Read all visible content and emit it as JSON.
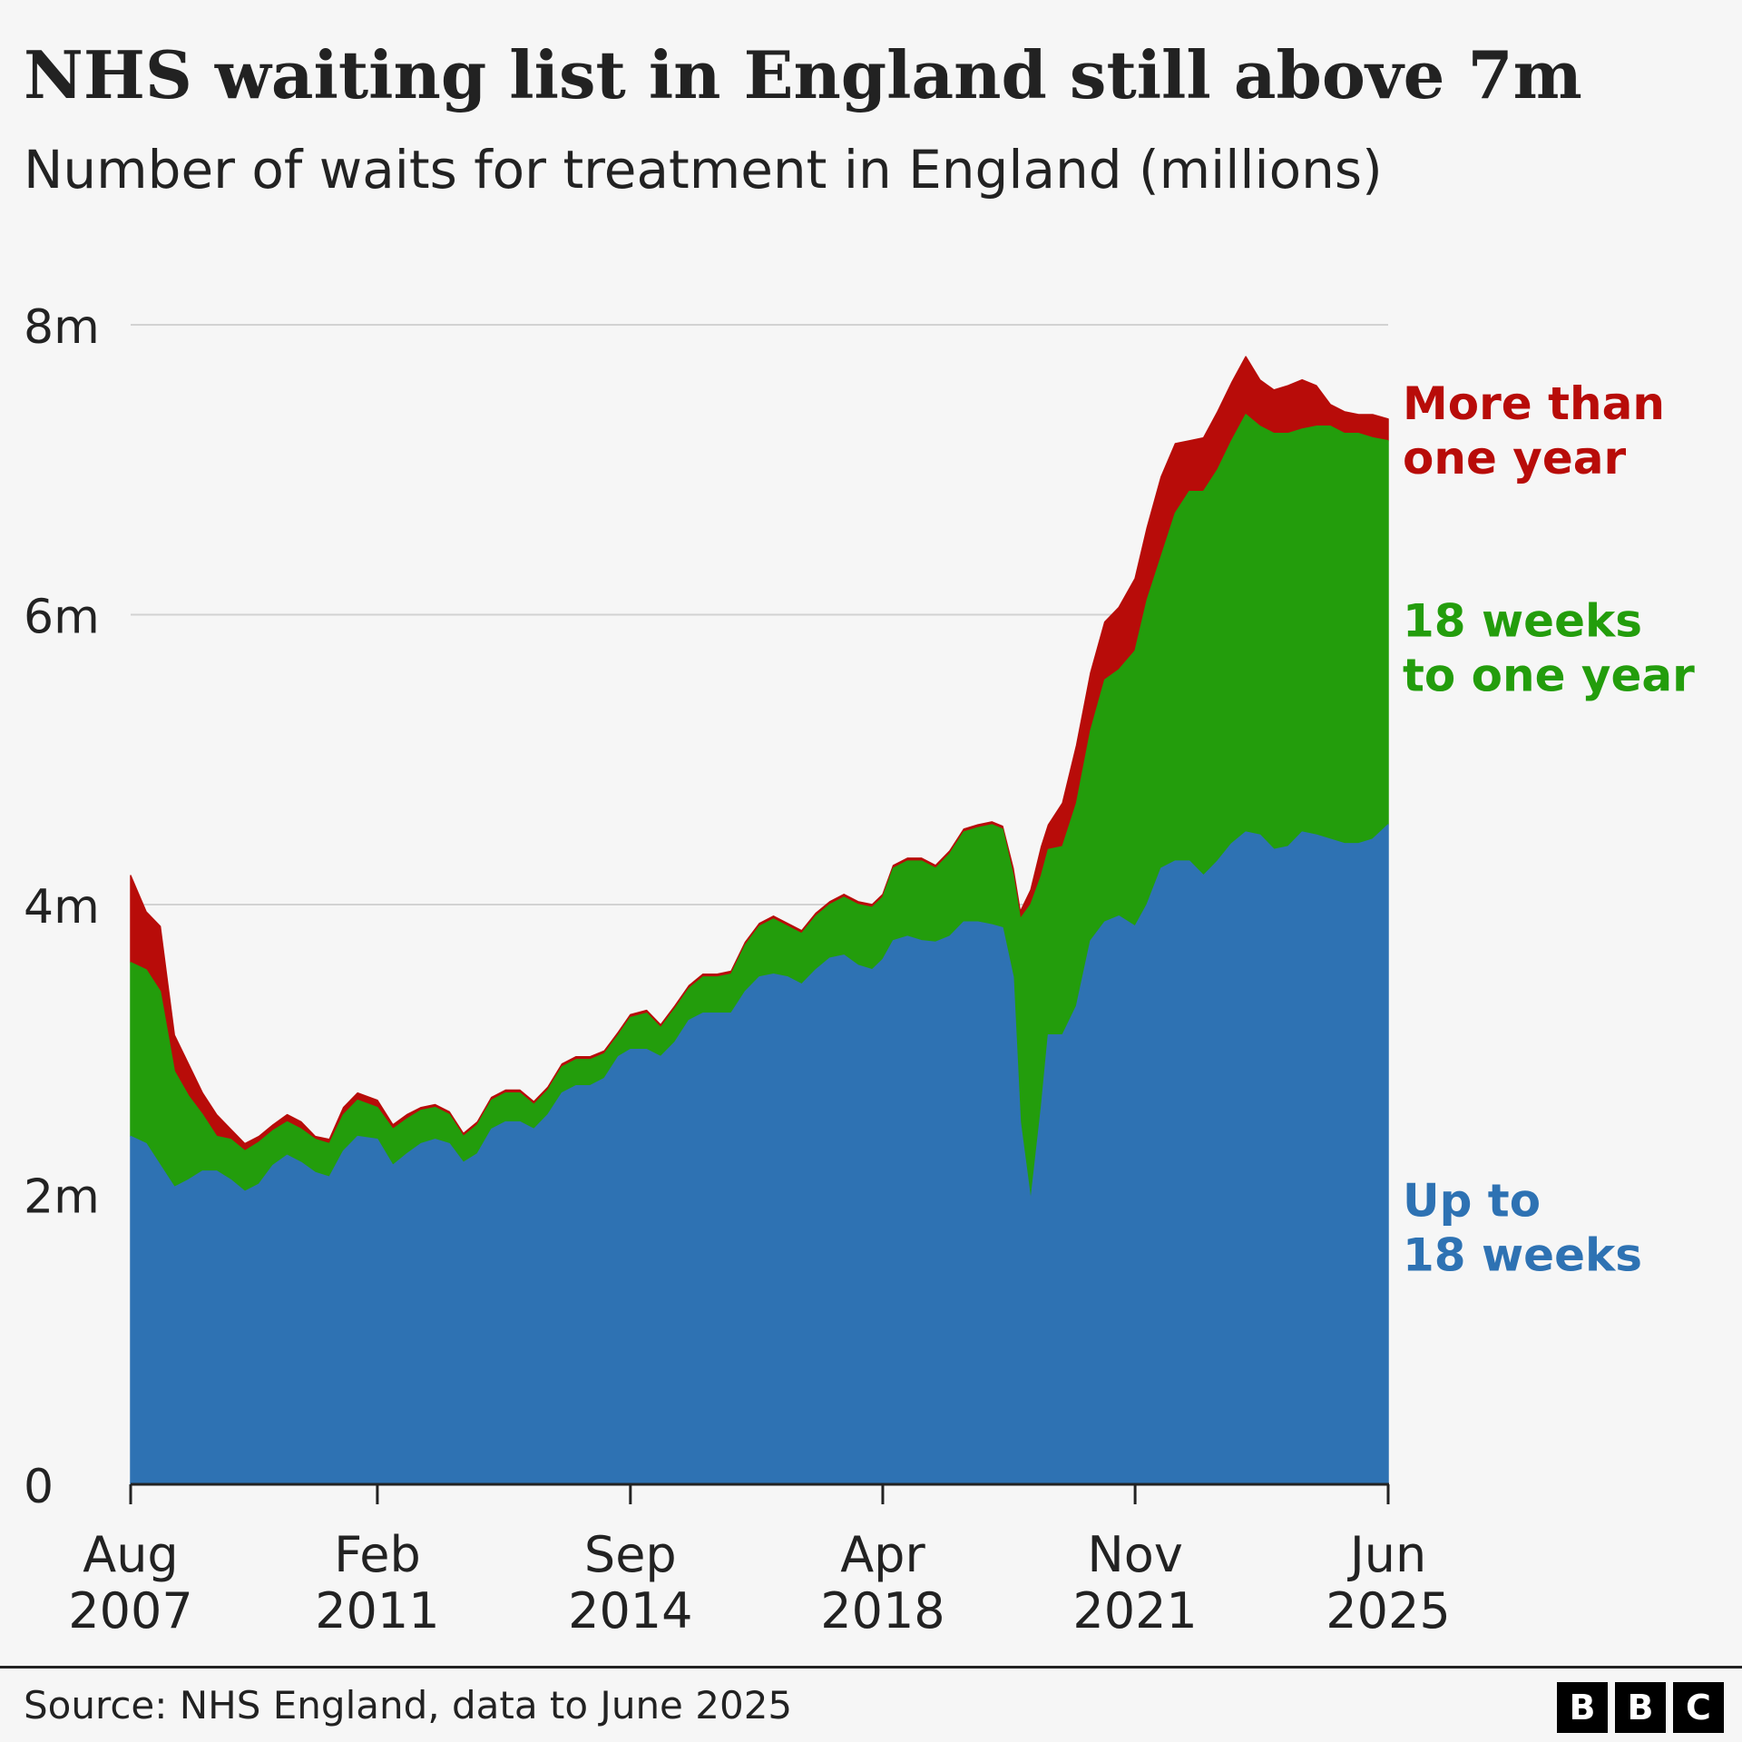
{
  "title": "NHS waiting list in England still above 7m",
  "subtitle": "Number of waits for treatment in England (millions)",
  "source": "Source: NHS England, data to June 2025",
  "logo": [
    "B",
    "B",
    "C"
  ],
  "colors": {
    "up_to_18_weeks": "#2e72b3",
    "18_weeks_to_one_year": "#239d0c",
    "more_than_one_year": "#b80c09",
    "grid": "#d2d2d2",
    "text": "#222222"
  },
  "chart_data": {
    "type": "area",
    "stacked": true,
    "title": "NHS waiting list in England still above 7m",
    "subtitle": "Number of waits for treatment in England (millions)",
    "xlabel": "",
    "ylabel": "",
    "ylim": [
      0,
      8
    ],
    "xlim": [
      "Aug 2007",
      "Jun 2025"
    ],
    "grid": true,
    "y_ticks": [
      {
        "value": 0,
        "label": "0"
      },
      {
        "value": 2,
        "label": "2m"
      },
      {
        "value": 4,
        "label": "4m"
      },
      {
        "value": 6,
        "label": "6m"
      },
      {
        "value": 8,
        "label": "8m"
      }
    ],
    "x_ticks": [
      {
        "label": [
          "Aug",
          "2007"
        ],
        "t": 2007.58
      },
      {
        "label": [
          "Feb",
          "2011"
        ],
        "t": 2011.08
      },
      {
        "label": [
          "Sep",
          "2014"
        ],
        "t": 2014.67
      },
      {
        "label": [
          "Apr",
          "2018"
        ],
        "t": 2018.25
      },
      {
        "label": [
          "Nov",
          "2021"
        ],
        "t": 2021.83
      },
      {
        "label": [
          "Jun",
          "2025"
        ],
        "t": 2025.42
      }
    ],
    "series": [
      {
        "name": "Up to 18 weeks",
        "label": [
          "Up to",
          "18 weeks"
        ],
        "label_y": 1.8,
        "points": [
          [
            2007.58,
            2.4
          ],
          [
            2007.8,
            2.35
          ],
          [
            2008.0,
            2.2
          ],
          [
            2008.2,
            2.05
          ],
          [
            2008.4,
            2.1
          ],
          [
            2008.6,
            2.16
          ],
          [
            2008.8,
            2.16
          ],
          [
            2009.0,
            2.1
          ],
          [
            2009.2,
            2.02
          ],
          [
            2009.4,
            2.07
          ],
          [
            2009.6,
            2.2
          ],
          [
            2009.8,
            2.27
          ],
          [
            2010.0,
            2.22
          ],
          [
            2010.2,
            2.15
          ],
          [
            2010.4,
            2.12
          ],
          [
            2010.6,
            2.3
          ],
          [
            2010.8,
            2.4
          ],
          [
            2011.08,
            2.38
          ],
          [
            2011.3,
            2.2
          ],
          [
            2011.5,
            2.28
          ],
          [
            2011.7,
            2.35
          ],
          [
            2011.9,
            2.38
          ],
          [
            2012.1,
            2.35
          ],
          [
            2012.3,
            2.22
          ],
          [
            2012.5,
            2.28
          ],
          [
            2012.7,
            2.45
          ],
          [
            2012.9,
            2.5
          ],
          [
            2013.1,
            2.5
          ],
          [
            2013.3,
            2.45
          ],
          [
            2013.5,
            2.55
          ],
          [
            2013.7,
            2.7
          ],
          [
            2013.9,
            2.75
          ],
          [
            2014.1,
            2.75
          ],
          [
            2014.3,
            2.8
          ],
          [
            2014.5,
            2.95
          ],
          [
            2014.67,
            3.0
          ],
          [
            2014.9,
            3.0
          ],
          [
            2015.1,
            2.95
          ],
          [
            2015.3,
            3.05
          ],
          [
            2015.5,
            3.2
          ],
          [
            2015.7,
            3.25
          ],
          [
            2015.9,
            3.25
          ],
          [
            2016.1,
            3.25
          ],
          [
            2016.3,
            3.4
          ],
          [
            2016.5,
            3.5
          ],
          [
            2016.7,
            3.52
          ],
          [
            2016.9,
            3.5
          ],
          [
            2017.1,
            3.45
          ],
          [
            2017.3,
            3.55
          ],
          [
            2017.5,
            3.63
          ],
          [
            2017.7,
            3.65
          ],
          [
            2017.9,
            3.58
          ],
          [
            2018.1,
            3.55
          ],
          [
            2018.25,
            3.62
          ],
          [
            2018.4,
            3.75
          ],
          [
            2018.6,
            3.78
          ],
          [
            2018.8,
            3.75
          ],
          [
            2019.0,
            3.74
          ],
          [
            2019.2,
            3.78
          ],
          [
            2019.4,
            3.88
          ],
          [
            2019.6,
            3.88
          ],
          [
            2019.8,
            3.86
          ],
          [
            2019.95,
            3.84
          ],
          [
            2020.1,
            3.5
          ],
          [
            2020.2,
            2.5
          ],
          [
            2020.35,
            1.95
          ],
          [
            2020.5,
            2.6
          ],
          [
            2020.6,
            3.1
          ],
          [
            2020.8,
            3.1
          ],
          [
            2021.0,
            3.3
          ],
          [
            2021.2,
            3.75
          ],
          [
            2021.4,
            3.88
          ],
          [
            2021.6,
            3.92
          ],
          [
            2021.83,
            3.85
          ],
          [
            2022.0,
            4.0
          ],
          [
            2022.2,
            4.25
          ],
          [
            2022.4,
            4.3
          ],
          [
            2022.6,
            4.3
          ],
          [
            2022.8,
            4.2
          ],
          [
            2023.0,
            4.3
          ],
          [
            2023.2,
            4.42
          ],
          [
            2023.4,
            4.5
          ],
          [
            2023.6,
            4.48
          ],
          [
            2023.8,
            4.38
          ],
          [
            2024.0,
            4.4
          ],
          [
            2024.2,
            4.5
          ],
          [
            2024.4,
            4.48
          ],
          [
            2024.6,
            4.45
          ],
          [
            2024.8,
            4.42
          ],
          [
            2025.0,
            4.42
          ],
          [
            2025.2,
            4.45
          ],
          [
            2025.42,
            4.55
          ]
        ]
      },
      {
        "name": "18 weeks to one year",
        "label": [
          "18 weeks",
          "to one year"
        ],
        "label_y": 5.8,
        "points": [
          [
            2007.58,
            3.6
          ],
          [
            2007.8,
            3.55
          ],
          [
            2008.0,
            3.4
          ],
          [
            2008.2,
            2.85
          ],
          [
            2008.4,
            2.68
          ],
          [
            2008.6,
            2.55
          ],
          [
            2008.8,
            2.4
          ],
          [
            2009.0,
            2.38
          ],
          [
            2009.2,
            2.3
          ],
          [
            2009.4,
            2.36
          ],
          [
            2009.6,
            2.44
          ],
          [
            2009.8,
            2.5
          ],
          [
            2010.0,
            2.45
          ],
          [
            2010.2,
            2.38
          ],
          [
            2010.4,
            2.35
          ],
          [
            2010.6,
            2.55
          ],
          [
            2010.8,
            2.65
          ],
          [
            2011.08,
            2.6
          ],
          [
            2011.3,
            2.45
          ],
          [
            2011.5,
            2.52
          ],
          [
            2011.7,
            2.58
          ],
          [
            2011.9,
            2.6
          ],
          [
            2012.1,
            2.55
          ],
          [
            2012.3,
            2.4
          ],
          [
            2012.5,
            2.48
          ],
          [
            2012.7,
            2.65
          ],
          [
            2012.9,
            2.7
          ],
          [
            2013.1,
            2.7
          ],
          [
            2013.3,
            2.62
          ],
          [
            2013.5,
            2.72
          ],
          [
            2013.7,
            2.88
          ],
          [
            2013.9,
            2.93
          ],
          [
            2014.1,
            2.93
          ],
          [
            2014.3,
            2.97
          ],
          [
            2014.5,
            3.1
          ],
          [
            2014.67,
            3.22
          ],
          [
            2014.9,
            3.25
          ],
          [
            2015.1,
            3.15
          ],
          [
            2015.3,
            3.28
          ],
          [
            2015.5,
            3.42
          ],
          [
            2015.7,
            3.5
          ],
          [
            2015.9,
            3.5
          ],
          [
            2016.1,
            3.52
          ],
          [
            2016.3,
            3.72
          ],
          [
            2016.5,
            3.85
          ],
          [
            2016.7,
            3.9
          ],
          [
            2016.9,
            3.85
          ],
          [
            2017.1,
            3.8
          ],
          [
            2017.3,
            3.92
          ],
          [
            2017.5,
            4.0
          ],
          [
            2017.7,
            4.05
          ],
          [
            2017.9,
            4.0
          ],
          [
            2018.1,
            3.98
          ],
          [
            2018.25,
            4.05
          ],
          [
            2018.4,
            4.25
          ],
          [
            2018.6,
            4.3
          ],
          [
            2018.8,
            4.3
          ],
          [
            2019.0,
            4.25
          ],
          [
            2019.2,
            4.35
          ],
          [
            2019.4,
            4.5
          ],
          [
            2019.6,
            4.53
          ],
          [
            2019.8,
            4.55
          ],
          [
            2019.95,
            4.52
          ],
          [
            2020.1,
            4.2
          ],
          [
            2020.2,
            3.9
          ],
          [
            2020.35,
            4.0
          ],
          [
            2020.5,
            4.2
          ],
          [
            2020.6,
            4.38
          ],
          [
            2020.8,
            4.4
          ],
          [
            2021.0,
            4.7
          ],
          [
            2021.2,
            5.2
          ],
          [
            2021.4,
            5.55
          ],
          [
            2021.6,
            5.62
          ],
          [
            2021.83,
            5.75
          ],
          [
            2022.0,
            6.1
          ],
          [
            2022.2,
            6.4
          ],
          [
            2022.4,
            6.7
          ],
          [
            2022.6,
            6.85
          ],
          [
            2022.8,
            6.85
          ],
          [
            2023.0,
            7.0
          ],
          [
            2023.2,
            7.2
          ],
          [
            2023.4,
            7.38
          ],
          [
            2023.6,
            7.3
          ],
          [
            2023.8,
            7.25
          ],
          [
            2024.0,
            7.25
          ],
          [
            2024.2,
            7.28
          ],
          [
            2024.4,
            7.3
          ],
          [
            2024.6,
            7.3
          ],
          [
            2024.8,
            7.25
          ],
          [
            2025.0,
            7.25
          ],
          [
            2025.2,
            7.22
          ],
          [
            2025.42,
            7.2
          ]
        ]
      },
      {
        "name": "More than one year",
        "label": [
          "More than",
          "one year"
        ],
        "label_y": 7.3,
        "points": [
          [
            2007.58,
            4.2
          ],
          [
            2007.8,
            3.95
          ],
          [
            2008.0,
            3.85
          ],
          [
            2008.2,
            3.1
          ],
          [
            2008.4,
            2.9
          ],
          [
            2008.6,
            2.7
          ],
          [
            2008.8,
            2.55
          ],
          [
            2009.0,
            2.45
          ],
          [
            2009.2,
            2.35
          ],
          [
            2009.4,
            2.4
          ],
          [
            2009.6,
            2.48
          ],
          [
            2009.8,
            2.55
          ],
          [
            2010.0,
            2.5
          ],
          [
            2010.2,
            2.4
          ],
          [
            2010.4,
            2.38
          ],
          [
            2010.6,
            2.6
          ],
          [
            2010.8,
            2.7
          ],
          [
            2011.08,
            2.65
          ],
          [
            2011.3,
            2.48
          ],
          [
            2011.5,
            2.55
          ],
          [
            2011.7,
            2.6
          ],
          [
            2011.9,
            2.62
          ],
          [
            2012.1,
            2.57
          ],
          [
            2012.3,
            2.42
          ],
          [
            2012.5,
            2.5
          ],
          [
            2012.7,
            2.67
          ],
          [
            2012.9,
            2.72
          ],
          [
            2013.1,
            2.72
          ],
          [
            2013.3,
            2.64
          ],
          [
            2013.5,
            2.74
          ],
          [
            2013.7,
            2.9
          ],
          [
            2013.9,
            2.95
          ],
          [
            2014.1,
            2.95
          ],
          [
            2014.3,
            2.99
          ],
          [
            2014.5,
            3.12
          ],
          [
            2014.67,
            3.24
          ],
          [
            2014.9,
            3.27
          ],
          [
            2015.1,
            3.17
          ],
          [
            2015.3,
            3.3
          ],
          [
            2015.5,
            3.44
          ],
          [
            2015.7,
            3.52
          ],
          [
            2015.9,
            3.52
          ],
          [
            2016.1,
            3.54
          ],
          [
            2016.3,
            3.74
          ],
          [
            2016.5,
            3.87
          ],
          [
            2016.7,
            3.92
          ],
          [
            2016.9,
            3.87
          ],
          [
            2017.1,
            3.82
          ],
          [
            2017.3,
            3.94
          ],
          [
            2017.5,
            4.02
          ],
          [
            2017.7,
            4.07
          ],
          [
            2017.9,
            4.02
          ],
          [
            2018.1,
            4.0
          ],
          [
            2018.25,
            4.07
          ],
          [
            2018.4,
            4.27
          ],
          [
            2018.6,
            4.32
          ],
          [
            2018.8,
            4.32
          ],
          [
            2019.0,
            4.27
          ],
          [
            2019.2,
            4.37
          ],
          [
            2019.4,
            4.52
          ],
          [
            2019.6,
            4.55
          ],
          [
            2019.8,
            4.57
          ],
          [
            2019.95,
            4.54
          ],
          [
            2020.1,
            4.25
          ],
          [
            2020.2,
            3.95
          ],
          [
            2020.35,
            4.1
          ],
          [
            2020.5,
            4.4
          ],
          [
            2020.6,
            4.55
          ],
          [
            2020.8,
            4.7
          ],
          [
            2021.0,
            5.1
          ],
          [
            2021.2,
            5.6
          ],
          [
            2021.4,
            5.95
          ],
          [
            2021.6,
            6.05
          ],
          [
            2021.83,
            6.25
          ],
          [
            2022.0,
            6.6
          ],
          [
            2022.2,
            6.95
          ],
          [
            2022.4,
            7.18
          ],
          [
            2022.6,
            7.2
          ],
          [
            2022.8,
            7.22
          ],
          [
            2023.0,
            7.4
          ],
          [
            2023.2,
            7.6
          ],
          [
            2023.4,
            7.78
          ],
          [
            2023.6,
            7.62
          ],
          [
            2023.8,
            7.55
          ],
          [
            2024.0,
            7.58
          ],
          [
            2024.2,
            7.62
          ],
          [
            2024.4,
            7.58
          ],
          [
            2024.6,
            7.45
          ],
          [
            2024.8,
            7.4
          ],
          [
            2025.0,
            7.38
          ],
          [
            2025.2,
            7.38
          ],
          [
            2025.42,
            7.35
          ]
        ]
      }
    ]
  }
}
